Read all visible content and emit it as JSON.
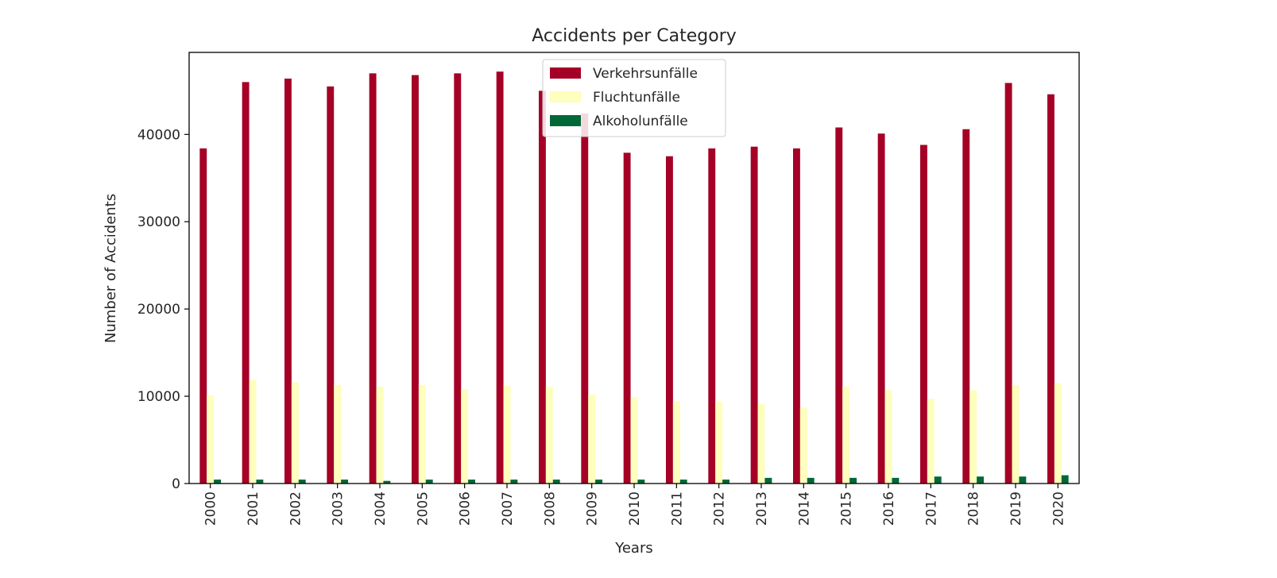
{
  "chart_data": {
    "type": "bar",
    "title": "Accidents per Category",
    "xlabel": "Years",
    "ylabel": "Number of Accidents",
    "categories": [
      "2000",
      "2001",
      "2002",
      "2003",
      "2004",
      "2005",
      "2006",
      "2007",
      "2008",
      "2009",
      "2010",
      "2011",
      "2012",
      "2013",
      "2014",
      "2015",
      "2016",
      "2017",
      "2018",
      "2019",
      "2020"
    ],
    "series": [
      {
        "name": "Verkehrsunfälle",
        "color": "#a50026",
        "values": [
          38400,
          46000,
          46400,
          45500,
          47000,
          46800,
          47000,
          47200,
          45000,
          42400,
          37900,
          37500,
          38400,
          38600,
          38400,
          40800,
          40100,
          38800,
          40600,
          45900,
          44600
        ]
      },
      {
        "name": "Fluchtunfälle",
        "color": "#fefebd",
        "values": [
          10100,
          11900,
          11600,
          11300,
          11100,
          11300,
          10800,
          11200,
          11100,
          10200,
          9900,
          9400,
          9400,
          9100,
          8700,
          11100,
          10700,
          9700,
          10700,
          11300,
          11500
        ]
      },
      {
        "name": "Alkoholunfälle",
        "color": "#006837",
        "values": [
          450,
          450,
          450,
          450,
          300,
          450,
          450,
          450,
          450,
          450,
          450,
          450,
          450,
          650,
          650,
          650,
          650,
          800,
          800,
          800,
          950
        ]
      }
    ],
    "ylim": [
      0,
      49400
    ],
    "yticks": [
      0,
      10000,
      20000,
      30000,
      40000
    ],
    "ytick_labels": [
      "0",
      "10000",
      "20000",
      "30000",
      "40000"
    ],
    "grid": false,
    "legend_position": "top-center"
  }
}
